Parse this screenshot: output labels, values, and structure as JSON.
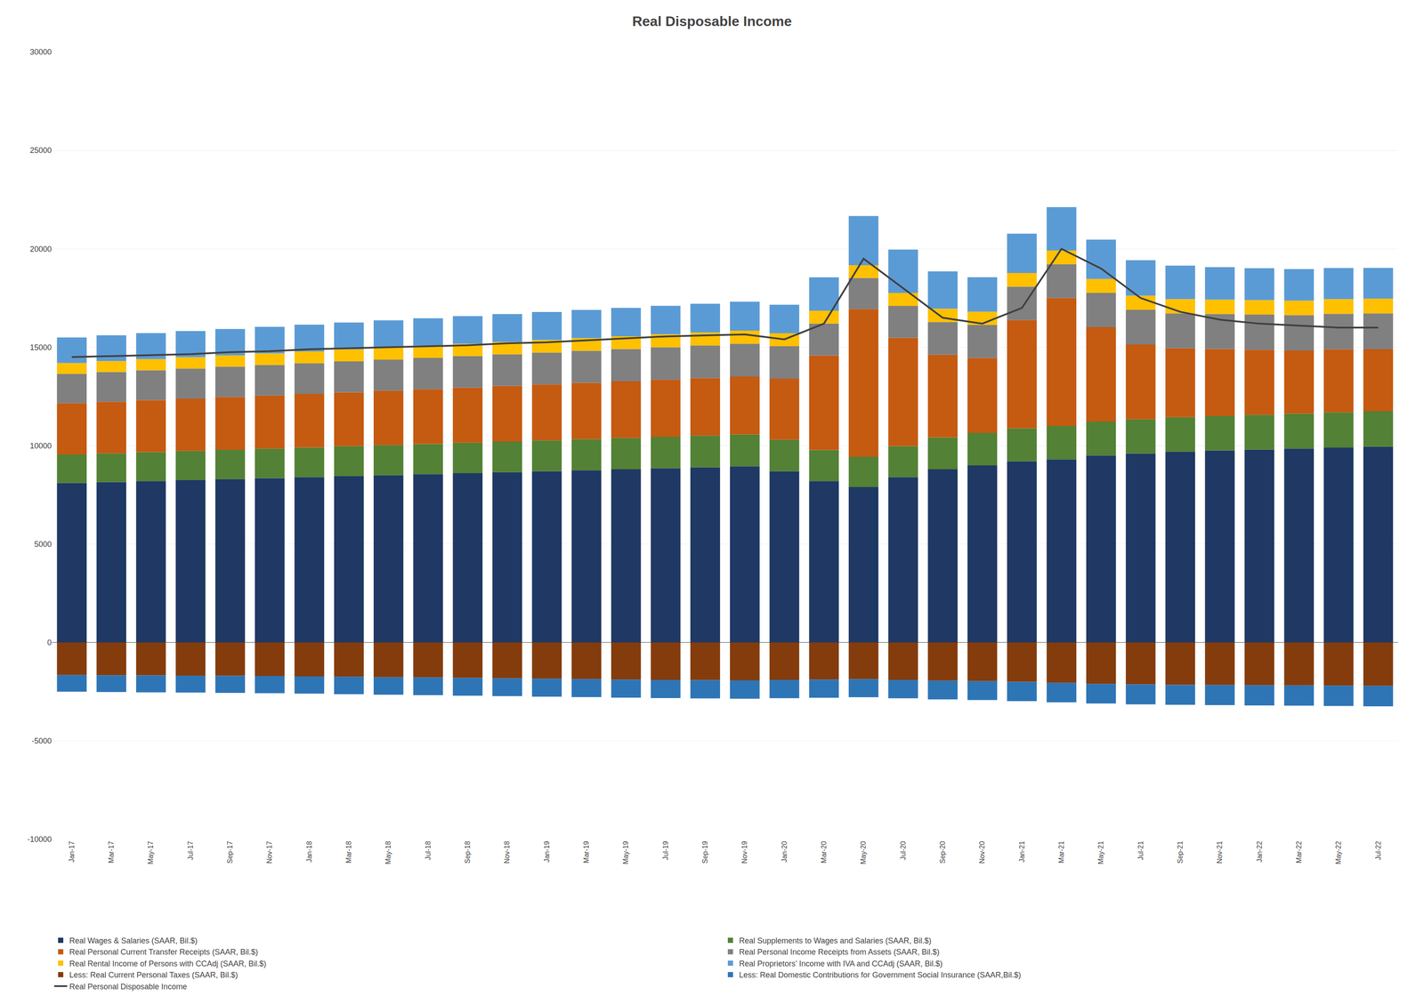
{
  "chart_data": {
    "type": "bar",
    "title": "Real Disposable Income",
    "stacked": true,
    "grid": "y",
    "legend": "bottom",
    "categories": [
      "Jan-17",
      "Mar-17",
      "May-17",
      "Jul-17",
      "Sep-17",
      "Nov-17",
      "Jan-18",
      "Mar-18",
      "May-18",
      "Jul-18",
      "Sep-18",
      "Nov-18",
      "Jan-19",
      "Mar-19",
      "May-19",
      "Jul-19",
      "Sep-19",
      "Nov-19",
      "Jan-20",
      "Mar-20",
      "May-20",
      "Jul-20",
      "Sep-20",
      "Nov-20",
      "Jan-21",
      "Mar-21",
      "May-21",
      "Jul-21",
      "Sep-21",
      "Nov-21",
      "Jan-22",
      "Mar-22",
      "May-22",
      "Jul-22"
    ],
    "ylim": [
      -10000,
      30000
    ],
    "yticks": [
      -10000,
      -5000,
      0,
      5000,
      10000,
      15000,
      20000,
      25000,
      30000
    ],
    "series": [
      {
        "name": "Real Wages & Salaries (SAAR, Bil.$)",
        "color": "#1F3864",
        "type": "bar",
        "values": [
          8100,
          8150,
          8200,
          8250,
          8300,
          8350,
          8400,
          8450,
          8500,
          8550,
          8600,
          8650,
          8700,
          8750,
          8800,
          8850,
          8900,
          8950,
          8700,
          8200,
          7900,
          8400,
          8800,
          9000,
          9200,
          9300,
          9500,
          9600,
          9700,
          9750,
          9800,
          9850,
          9900,
          9950
        ]
      },
      {
        "name": "Real Supplements to Wages and Salaries (SAAR, Bil.$)",
        "color": "#538135",
        "type": "bar",
        "values": [
          1450,
          1460,
          1470,
          1480,
          1490,
          1500,
          1510,
          1520,
          1530,
          1540,
          1550,
          1560,
          1570,
          1580,
          1590,
          1600,
          1610,
          1620,
          1600,
          1580,
          1540,
          1580,
          1620,
          1650,
          1680,
          1700,
          1720,
          1740,
          1750,
          1760,
          1770,
          1780,
          1790,
          1800
        ]
      },
      {
        "name": "Real Personal Current Transfer Receipts (SAAR, Bil.$)",
        "color": "#C55A11",
        "type": "bar",
        "values": [
          2600,
          2620,
          2640,
          2660,
          2680,
          2700,
          2720,
          2740,
          2760,
          2780,
          2800,
          2820,
          2840,
          2860,
          2880,
          2900,
          2920,
          2940,
          3100,
          4800,
          7500,
          5500,
          4200,
          3800,
          5500,
          6500,
          4800,
          3800,
          3500,
          3400,
          3300,
          3200,
          3200,
          3150
        ]
      },
      {
        "name": "Real Personal Income Receipts from Assets (SAAR, Bil.$)",
        "color": "#808080",
        "type": "bar",
        "values": [
          1500,
          1510,
          1520,
          1530,
          1540,
          1550,
          1560,
          1570,
          1580,
          1590,
          1600,
          1610,
          1620,
          1630,
          1640,
          1650,
          1660,
          1670,
          1650,
          1620,
          1580,
          1620,
          1660,
          1680,
          1700,
          1720,
          1740,
          1760,
          1770,
          1780,
          1790,
          1800,
          1810,
          1820
        ]
      },
      {
        "name": "Real Rental Income of Persons with CCAdj (SAAR, Bil.$)",
        "color": "#FFC000",
        "type": "bar",
        "values": [
          550,
          560,
          570,
          575,
          580,
          590,
          600,
          610,
          615,
          620,
          630,
          635,
          640,
          645,
          650,
          655,
          660,
          665,
          660,
          655,
          650,
          660,
          675,
          680,
          690,
          700,
          710,
          720,
          725,
          730,
          735,
          740,
          745,
          750
        ]
      },
      {
        "name": "Real Proprietors’ Income with IVA and CCAdj (SAAR, Bil.$)",
        "color": "#5B9BD5",
        "type": "bar",
        "values": [
          1300,
          1310,
          1320,
          1330,
          1340,
          1350,
          1360,
          1370,
          1380,
          1390,
          1400,
          1410,
          1420,
          1430,
          1440,
          1450,
          1460,
          1470,
          1450,
          1700,
          2500,
          2200,
          1900,
          1750,
          2000,
          2200,
          2000,
          1800,
          1700,
          1650,
          1620,
          1600,
          1580,
          1560
        ]
      },
      {
        "name": "Less: Real Current Personal Taxes (SAAR, Bil.$)",
        "color": "#843C0C",
        "type": "bar",
        "values": [
          -1650,
          -1660,
          -1670,
          -1680,
          -1690,
          -1700,
          -1720,
          -1740,
          -1760,
          -1780,
          -1800,
          -1820,
          -1840,
          -1860,
          -1880,
          -1900,
          -1910,
          -1920,
          -1900,
          -1880,
          -1860,
          -1900,
          -1940,
          -1960,
          -2000,
          -2050,
          -2100,
          -2130,
          -2150,
          -2160,
          -2170,
          -2180,
          -2190,
          -2200
        ]
      },
      {
        "name": "Less: Real Domestic Contributions for Government Social Insurance (SAAR,Bil.$)",
        "color": "#2E75B6",
        "type": "bar",
        "values": [
          -850,
          -855,
          -860,
          -865,
          -870,
          -875,
          -880,
          -885,
          -890,
          -895,
          -900,
          -905,
          -910,
          -915,
          -920,
          -925,
          -930,
          -935,
          -930,
          -925,
          -920,
          -935,
          -950,
          -960,
          -975,
          -990,
          -1000,
          -1010,
          -1015,
          -1020,
          -1025,
          -1030,
          -1035,
          -1040
        ]
      },
      {
        "name": "Real Personal Disposable Income",
        "color": "#404040",
        "type": "line",
        "values": [
          14500,
          14550,
          14600,
          14650,
          14750,
          14800,
          14900,
          14950,
          15000,
          15050,
          15100,
          15200,
          15250,
          15350,
          15450,
          15550,
          15600,
          15650,
          15400,
          16200,
          19500,
          18000,
          16500,
          16200,
          17000,
          20000,
          19000,
          17500,
          16800,
          16400,
          16200,
          16100,
          16000,
          16000
        ]
      }
    ]
  }
}
